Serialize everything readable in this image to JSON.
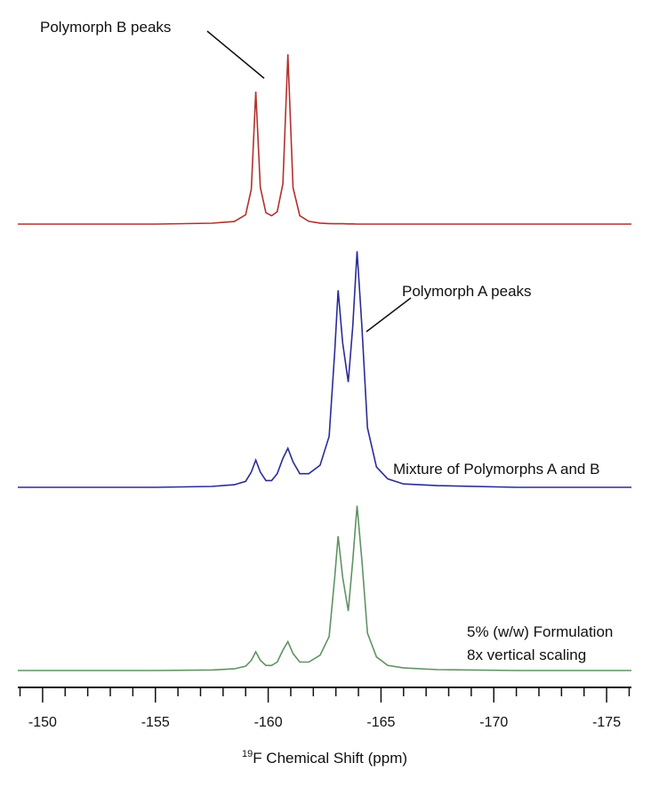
{
  "chart_data": {
    "type": "line",
    "xlabel": {
      "superscript": "19",
      "text": "F Chemical Shift (ppm)"
    },
    "annotations": [
      "Polymorph B peaks",
      "Polymorph A peaks",
      "Mixture of Polymorphs A and B",
      "5% (w/w) Formulation",
      "8x vertical scaling"
    ],
    "xlim": [
      -148.9,
      -176.1
    ],
    "xticks": [
      -150,
      -155,
      -160,
      -165,
      -170,
      -175
    ],
    "xminor_ticks": [
      -149,
      -151,
      -152,
      -153,
      -154,
      -156,
      -157,
      -158,
      -159,
      -161,
      -162,
      -163,
      -164,
      -166,
      -167,
      -168,
      -169,
      -171,
      -172,
      -173,
      -174,
      -176
    ],
    "x": [
      -148.9,
      -155,
      -157.5,
      -158.5,
      -159.0,
      -159.25,
      -159.45,
      -159.65,
      -159.9,
      -160.15,
      -160.4,
      -160.65,
      -160.87,
      -161.1,
      -161.4,
      -161.8,
      -162.3,
      -162.7,
      -162.95,
      -163.1,
      -163.3,
      -163.55,
      -163.75,
      -163.94,
      -164.15,
      -164.4,
      -164.8,
      -165.3,
      -166,
      -167.5,
      -171,
      -176.1
    ],
    "series": [
      {
        "color": "#b3312d",
        "values": [
          0,
          0,
          0.5,
          1.5,
          5.5,
          20.6,
          78,
          21.6,
          6.7,
          4.9,
          7.3,
          23.7,
          100,
          21.4,
          4.9,
          1.6,
          0.6,
          0.3,
          0.2,
          0.2,
          0.2,
          0.1,
          0.1,
          0,
          0,
          0,
          0,
          0,
          0,
          0,
          0,
          0
        ]
      },
      {
        "color": "#2a2c98",
        "values": [
          0,
          0,
          0.5,
          1.5,
          3.5,
          9,
          16,
          9,
          4,
          4,
          8,
          17,
          23,
          15,
          8,
          8,
          13,
          30,
          80,
          116,
          85,
          62,
          95,
          139,
          95,
          35,
          12,
          5,
          2,
          1,
          0,
          0
        ]
      },
      {
        "color": "#5f9363",
        "values": [
          0,
          0,
          0.3,
          1,
          2.5,
          6,
          11,
          6,
          3,
          3,
          5,
          12,
          17,
          10,
          5,
          5,
          9,
          20,
          55,
          79,
          55,
          35,
          65,
          97,
          65,
          22,
          8,
          3,
          1.5,
          0.5,
          0,
          0
        ]
      }
    ]
  }
}
